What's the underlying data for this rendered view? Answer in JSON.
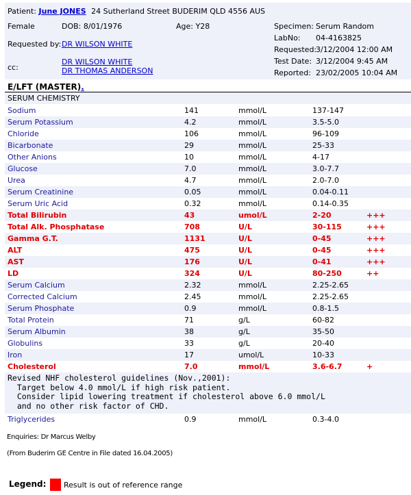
{
  "patient": {
    "label": "Patient:",
    "name": "June JONES",
    "address": "24 Sutherland Street BUDERIM QLD 4556 AUS",
    "sex": "Female",
    "dob": "DOB: 8/01/1976",
    "age": "Age: Y28",
    "requested_by_label": "Requested by:",
    "requested_by": "DR WILSON WHITE",
    "cc_label": "cc:",
    "cc": [
      "DR WILSON WHITE",
      "DR THOMAS ANDERSON"
    ]
  },
  "specimen": {
    "specimen_label": "Specimen:",
    "specimen": "Serum Random",
    "labno_label": "LabNo:",
    "labno": "04-4163825",
    "requested_label": "Requested:",
    "requested": "3/12/2004 12:00 AM",
    "testdate_label": "Test Date:",
    "testdate": "3/12/2004 9:45 AM",
    "reported_label": "Reported:",
    "reported": "23/02/2005 10:04 AM"
  },
  "report": {
    "title": "E/LFT (MASTER)",
    "title_suffix": ".",
    "section": "SERUM CHEMISTRY",
    "results": [
      {
        "name": "Sodium",
        "value": "141",
        "unit": "mmol/L",
        "range": "137-147",
        "flag": "",
        "abnormal": false
      },
      {
        "name": "Serum Potassium",
        "value": "4.2",
        "unit": "mmol/L",
        "range": "3.5-5.0",
        "flag": "",
        "abnormal": false
      },
      {
        "name": "Chloride",
        "value": "106",
        "unit": "mmol/L",
        "range": "96-109",
        "flag": "",
        "abnormal": false
      },
      {
        "name": "Bicarbonate",
        "value": "29",
        "unit": "mmol/L",
        "range": "25-33",
        "flag": "",
        "abnormal": false
      },
      {
        "name": "Other Anions",
        "value": "10",
        "unit": "mmol/L",
        "range": "4-17",
        "flag": "",
        "abnormal": false
      },
      {
        "name": "Glucose",
        "value": "7.0",
        "unit": "mmol/L",
        "range": "3.0-7.7",
        "flag": "",
        "abnormal": false
      },
      {
        "name": "Urea",
        "value": "4.7",
        "unit": "mmol/L",
        "range": "2.0-7.0",
        "flag": "",
        "abnormal": false
      },
      {
        "name": "Serum Creatinine",
        "value": "0.05",
        "unit": "mmol/L",
        "range": "0.04-0.11",
        "flag": "",
        "abnormal": false
      },
      {
        "name": "Serum Uric Acid",
        "value": "0.32",
        "unit": "mmol/L",
        "range": "0.14-0.35",
        "flag": "",
        "abnormal": false
      },
      {
        "name": "Total Bilirubin",
        "value": "43",
        "unit": "umol/L",
        "range": "2-20",
        "flag": "+++",
        "abnormal": true
      },
      {
        "name": "Total Alk. Phosphatase",
        "value": "708",
        "unit": "U/L",
        "range": "30-115",
        "flag": "+++",
        "abnormal": true
      },
      {
        "name": "Gamma G.T.",
        "value": "1131",
        "unit": "U/L",
        "range": "0-45",
        "flag": "+++",
        "abnormal": true
      },
      {
        "name": "ALT",
        "value": "475",
        "unit": "U/L",
        "range": "0-45",
        "flag": "+++",
        "abnormal": true
      },
      {
        "name": "AST",
        "value": "176",
        "unit": "U/L",
        "range": "0-41",
        "flag": "+++",
        "abnormal": true
      },
      {
        "name": "LD",
        "value": "324",
        "unit": "U/L",
        "range": "80-250",
        "flag": "++",
        "abnormal": true
      },
      {
        "name": "Serum Calcium",
        "value": "2.32",
        "unit": "mmol/L",
        "range": "2.25-2.65",
        "flag": "",
        "abnormal": false
      },
      {
        "name": "Corrected Calcium",
        "value": "2.45",
        "unit": "mmol/L",
        "range": "2.25-2.65",
        "flag": "",
        "abnormal": false
      },
      {
        "name": "Serum Phosphate",
        "value": "0.9",
        "unit": "mmol/L",
        "range": "0.8-1.5",
        "flag": "",
        "abnormal": false
      },
      {
        "name": "Total Protein",
        "value": "71",
        "unit": "g/L",
        "range": "60-82",
        "flag": "",
        "abnormal": false
      },
      {
        "name": "Serum Albumin",
        "value": "38",
        "unit": "g/L",
        "range": "35-50",
        "flag": "",
        "abnormal": false
      },
      {
        "name": "Globulins",
        "value": "33",
        "unit": "g/L",
        "range": "20-40",
        "flag": "",
        "abnormal": false
      },
      {
        "name": "Iron",
        "value": "17",
        "unit": "umol/L",
        "range": "10-33",
        "flag": "",
        "abnormal": false
      },
      {
        "name": "Cholesterol",
        "value": "7.0",
        "unit": "mmol/L",
        "range": "3.6-6.7",
        "flag": "+",
        "abnormal": true
      }
    ],
    "note": "Revised NHF cholesterol guidelines (Nov.,2001):\n  Target below 4.0 mmol/L if high risk patient.\n  Consider lipid lowering treatment if cholesterol above 6.0 mmol/L\n  and no other risk factor of CHD.",
    "triglycerides": {
      "name": "Triglycerides",
      "value": "0.9",
      "unit": "mmol/L",
      "range": "0.3-4.0",
      "flag": "",
      "abnormal": false
    }
  },
  "footer": {
    "enquiries": "Enquiries: Dr Marcus Welby",
    "source": "(From Buderim GE Centre in File  dated 16.04.2005)",
    "legend_label": "Legend:",
    "legend_text": "Result is out of reference range",
    "legend_color": "#ff0000"
  },
  "colors": {
    "header_bg": "#eef0fa",
    "abnormal": "#e00000",
    "link": "#0000cc",
    "name": "#1a1a99"
  }
}
